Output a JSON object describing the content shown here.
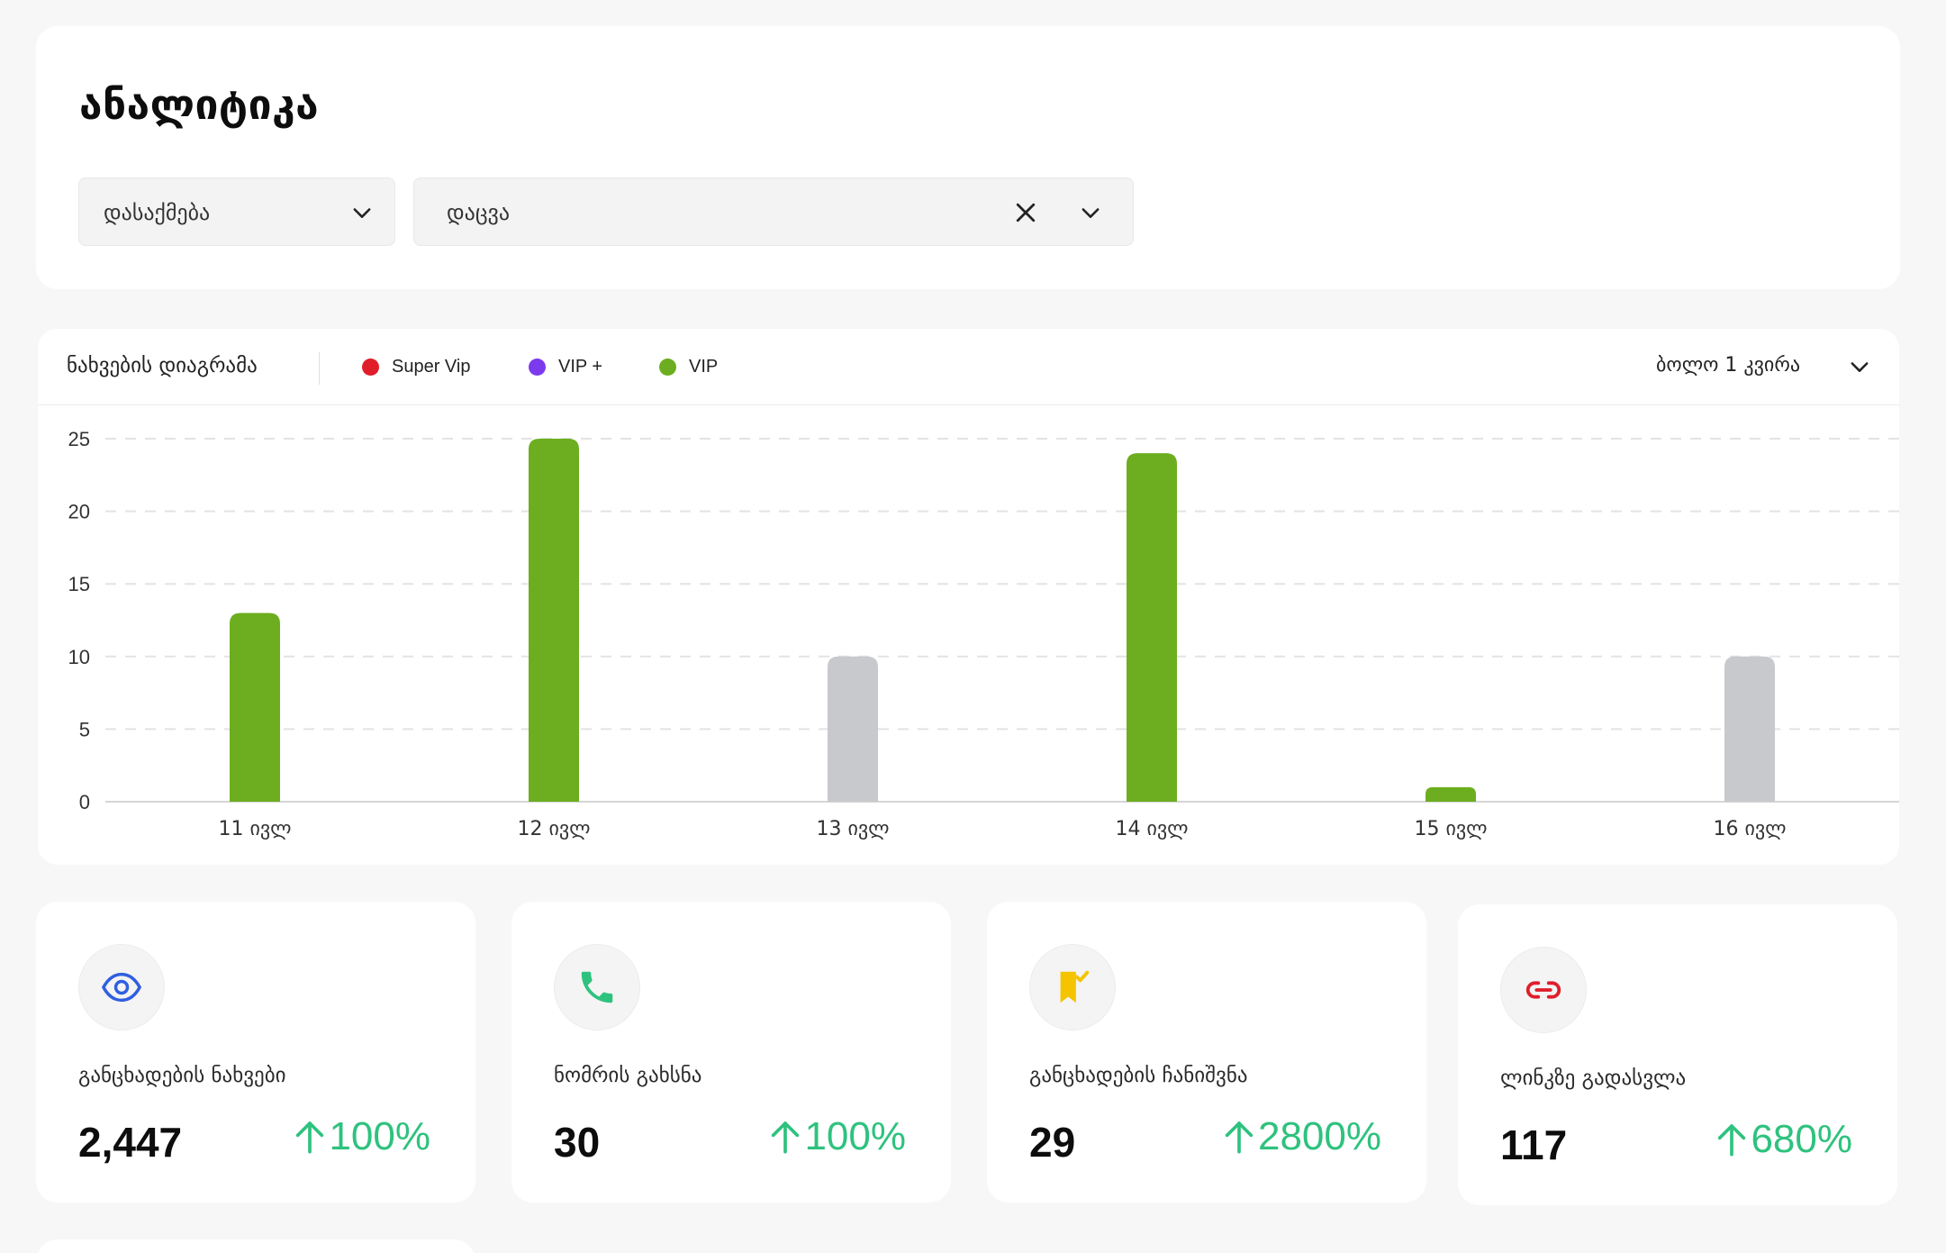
{
  "page": {
    "title": "ანალიტიკა"
  },
  "filters": {
    "category": {
      "value": "დასაქმება",
      "icon": "chevron-down-icon"
    },
    "subcategory": {
      "value": "დაცვა",
      "clear_icon": "close-icon",
      "icon": "chevron-down-icon"
    }
  },
  "chart_header": {
    "title": "ნახვების დიაგრამა",
    "legend": [
      {
        "label": "Super Vip",
        "color": "#e01e2b"
      },
      {
        "label": "VIP +",
        "color": "#7c3aed"
      },
      {
        "label": "VIP",
        "color": "#6cae1f"
      }
    ],
    "period": "ბოლო 1 კვირა"
  },
  "chart_data": {
    "type": "bar",
    "categories": [
      "11 ივლ",
      "12 ივლ",
      "13 ივლ",
      "14 ივლ",
      "15 ივლ",
      "16 ივლ"
    ],
    "series": [
      {
        "name": "VIP",
        "values": [
          13,
          25,
          10,
          24,
          1,
          10
        ],
        "colors": [
          "#6cae1f",
          "#6cae1f",
          "#c8c9cc",
          "#6cae1f",
          "#6cae1f",
          "#c8c9cc"
        ]
      }
    ],
    "yticks": [
      0,
      5,
      10,
      15,
      20,
      25
    ],
    "ylim": [
      0,
      25
    ],
    "grid": true,
    "legend_position": "top-left",
    "xlabel": "",
    "ylabel": ""
  },
  "stats": [
    {
      "label": "განცხადების ნახვები",
      "value": "2,447",
      "change": "100%",
      "icon": "eye-icon",
      "icon_color": "#2f5fe0"
    },
    {
      "label": "ნომრის გახსნა",
      "value": "30",
      "change": "100%",
      "icon": "phone-icon",
      "icon_color": "#2ec27e"
    },
    {
      "label": "განცხადების ჩანიშვნა",
      "value": "29",
      "change": "2800%",
      "icon": "bookmark-check-icon",
      "icon_color": "#f5c400"
    },
    {
      "label": "ლინკზე გადასვლა",
      "value": "117",
      "change": "680%",
      "icon": "link-icon",
      "icon_color": "#e01e2b"
    }
  ],
  "colors": {
    "accent_green": "#2ec27e",
    "bar_green": "#6cae1f",
    "bar_gray": "#c8c9cc"
  }
}
